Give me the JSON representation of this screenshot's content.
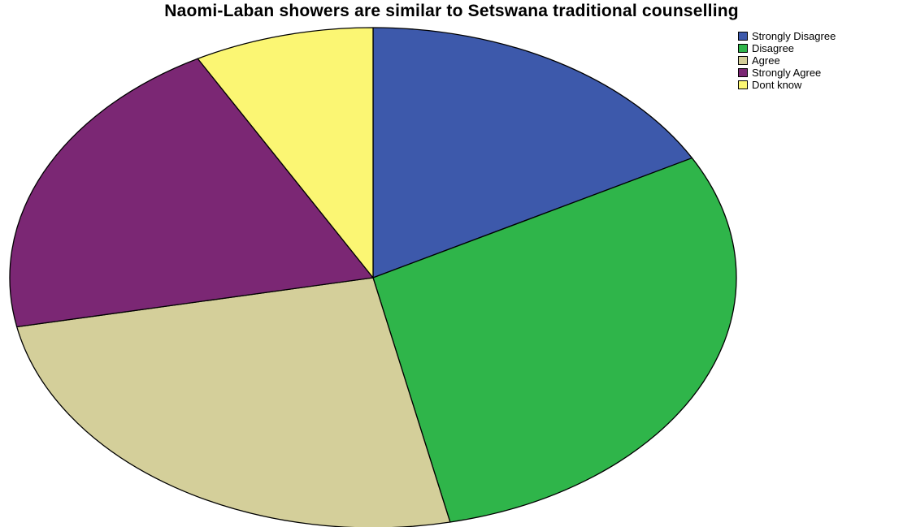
{
  "chart_data": {
    "type": "pie",
    "title": "Naomi-Laban showers are similar to Setswana traditional counselling",
    "categories": [
      "Strongly Disagree",
      "Disagree",
      "Agree",
      "Strongly Agree",
      "Dont know"
    ],
    "values": [
      18.3,
      31.7,
      27.1,
      21.6,
      8.6
    ],
    "unit": "%",
    "colors": [
      "#3d59ab",
      "#2fb54a",
      "#d4cf9a",
      "#7b2774",
      "#fbf673"
    ],
    "start_angle_deg": 0,
    "direction": "clockwise",
    "legend_position": "top-right"
  }
}
